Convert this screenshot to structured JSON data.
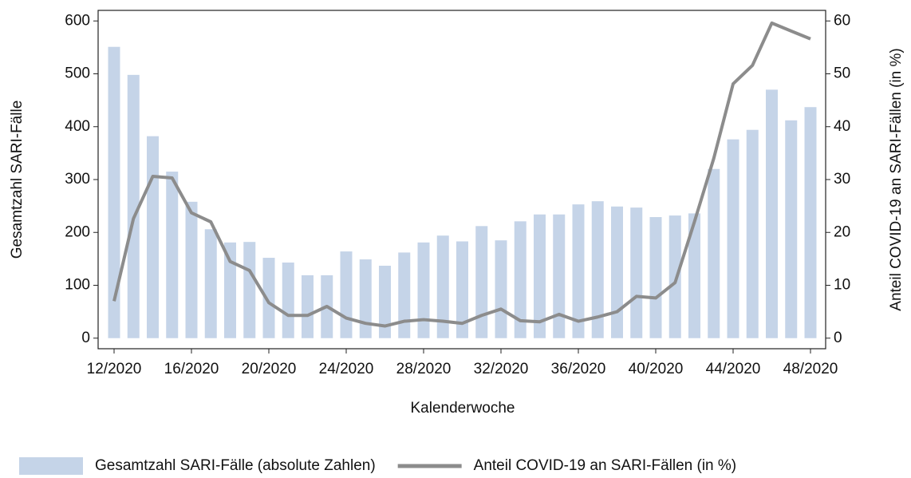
{
  "chart_data": {
    "type": "bar",
    "xlabel": "Kalenderwoche",
    "ylabel": "Gesamtzahl SARI-Fälle",
    "y2label": "Anteil COVID-19 an SARI-Fällen (in %)",
    "categories": [
      "12/2020",
      null,
      null,
      null,
      "16/2020",
      null,
      null,
      null,
      "20/2020",
      null,
      null,
      null,
      "24/2020",
      null,
      null,
      null,
      "28/2020",
      null,
      null,
      null,
      "32/2020",
      null,
      null,
      null,
      "36/2020",
      null,
      null,
      null,
      "40/2020",
      null,
      null,
      null,
      "44/2020",
      null,
      null,
      null,
      "48/2020"
    ],
    "series": [
      {
        "name": "Gesamtzahl SARI-Fälle (absolute Zahlen)",
        "type": "bar",
        "color": "#c5d4e8",
        "values": [
          551,
          498,
          382,
          315,
          258,
          206,
          181,
          182,
          152,
          143,
          119,
          119,
          164,
          149,
          137,
          162,
          181,
          194,
          183,
          212,
          185,
          221,
          234,
          234,
          253,
          259,
          249,
          247,
          229,
          232,
          236,
          320,
          376,
          394,
          470,
          412,
          437
        ]
      },
      {
        "name": "Anteil COVID-19 an SARI-Fällen (in %)",
        "type": "line",
        "axis": "y2",
        "color": "#8c8c8c",
        "values": [
          7,
          22.6,
          30.6,
          30.3,
          23.7,
          22,
          14.5,
          12.8,
          6.7,
          4.3,
          4.3,
          6,
          3.8,
          2.8,
          2.3,
          3.2,
          3.5,
          3.2,
          2.8,
          4.3,
          5.5,
          3.3,
          3.1,
          4.5,
          3.2,
          4,
          5,
          7.9,
          7.6,
          10.5,
          22,
          34,
          48.1,
          51.6,
          59.6,
          58.1,
          56.6
        ]
      }
    ],
    "ylim": [
      -20,
      620
    ],
    "yticks": [
      0,
      100,
      200,
      300,
      400,
      500,
      600
    ],
    "y2lim": [
      -2,
      62
    ],
    "y2ticks": [
      0,
      10,
      20,
      30,
      40,
      50,
      60
    ],
    "legend": "bottom"
  }
}
